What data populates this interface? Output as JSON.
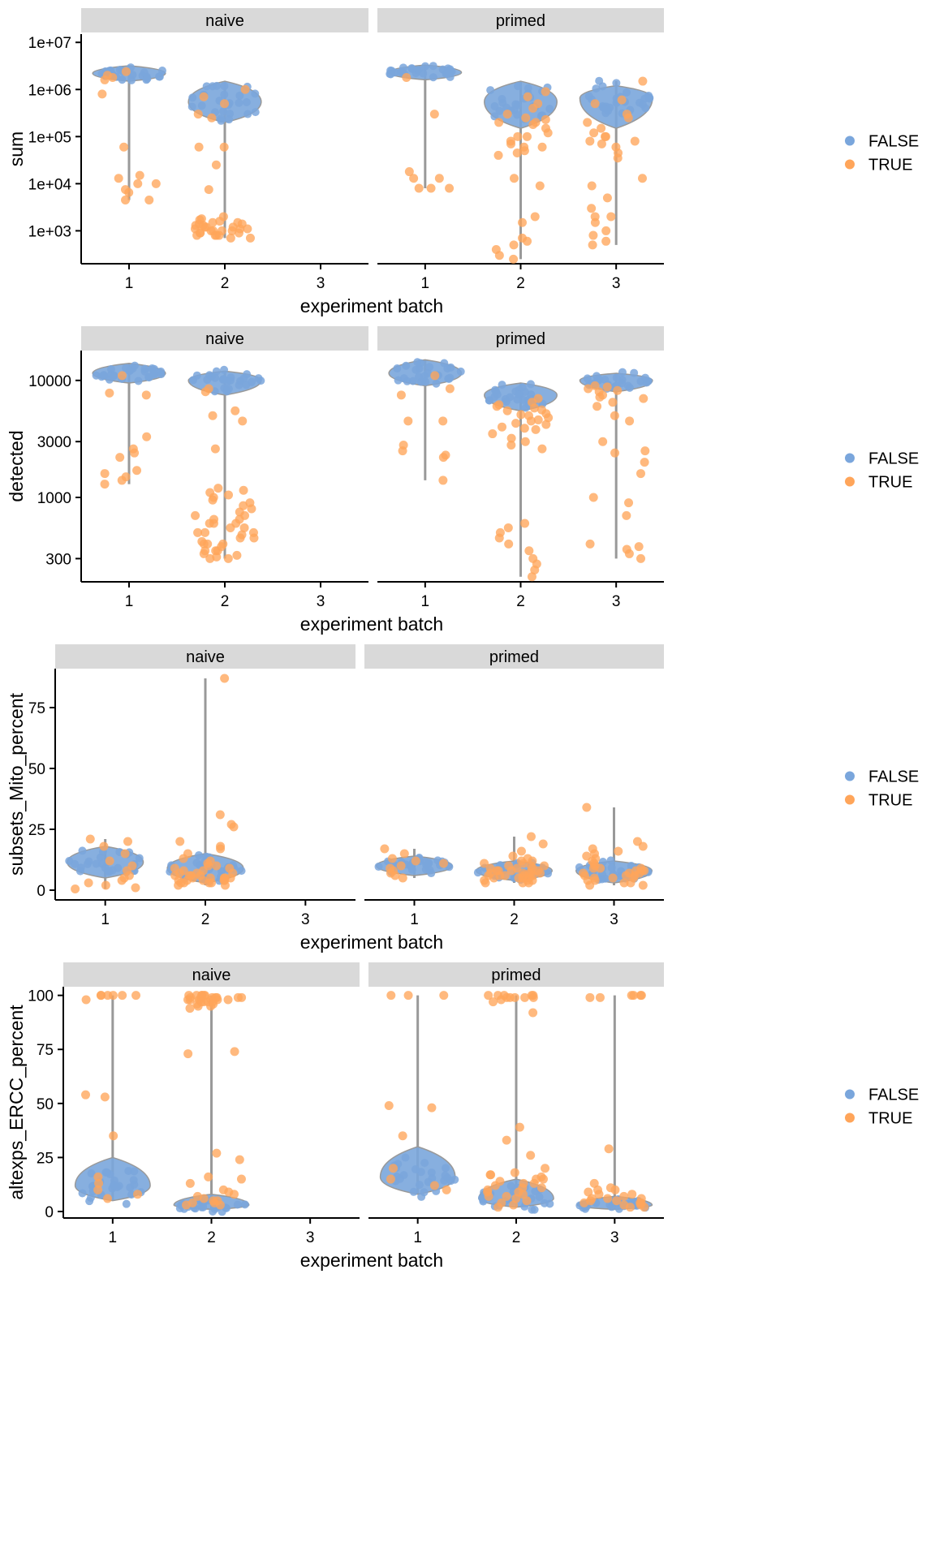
{
  "colors": {
    "false_pt": "#7aa6dc",
    "true_pt": "#ffa55a",
    "strip": "#d9d9d9",
    "violin": "#999999"
  },
  "chart_data": [
    {
      "type": "scatter",
      "title": "",
      "ylabel": "sum",
      "xlabel": "experiment batch",
      "y_scale": "log10",
      "ylim": [
        200,
        15000000
      ],
      "y_ticks": [
        1000,
        10000,
        100000,
        1000000,
        10000000
      ],
      "y_tick_labels": [
        "1e+03",
        "1e+04",
        "1e+05",
        "1e+06",
        "1e+07"
      ],
      "x_ticks": [
        "1",
        "2",
        "3"
      ],
      "facets": [
        "naive",
        "primed"
      ],
      "legend": {
        "position": "right",
        "entries": [
          "FALSE",
          "TRUE"
        ]
      },
      "groups": [
        {
          "facet": "naive",
          "batch": "1",
          "false_center": 2200000,
          "false_low": 1500000,
          "false_high": 3200000,
          "true_values": [
            2000000,
            1800000,
            2400000,
            1600000,
            800000,
            60000,
            15000,
            10000,
            10000,
            13000,
            7500,
            6500,
            4500,
            4500
          ]
        },
        {
          "facet": "naive",
          "batch": "2",
          "false_center": 550000,
          "false_low": 200000,
          "false_high": 1500000,
          "true_values": [
            1000000,
            700000,
            500000,
            300000,
            250000,
            60000,
            60000,
            25000,
            7500,
            1500,
            1400,
            1300,
            1200,
            1100,
            1000,
            900,
            800,
            1800,
            2000,
            1600,
            1300,
            1100,
            1000,
            900,
            800,
            700,
            1500,
            1200,
            1000,
            800,
            1700,
            1100,
            900,
            1400,
            1200,
            1000,
            800,
            700
          ]
        },
        {
          "facet": "primed",
          "batch": "1",
          "false_center": 2300000,
          "false_low": 1600000,
          "false_high": 3300000,
          "true_values": [
            1800000,
            300000,
            18000,
            13000,
            13000,
            8000,
            8000,
            8000
          ]
        },
        {
          "facet": "primed",
          "batch": "2",
          "false_center": 550000,
          "false_low": 150000,
          "false_high": 1500000,
          "true_values": [
            900000,
            700000,
            500000,
            400000,
            300000,
            250000,
            200000,
            180000,
            120000,
            100000,
            80000,
            70000,
            60000,
            50000,
            40000,
            13000,
            9000,
            2000,
            1500,
            700,
            600,
            500,
            400,
            300,
            250,
            230000,
            200000,
            150000,
            100000,
            60000,
            45000
          ]
        },
        {
          "facet": "primed",
          "batch": "3",
          "false_center": 650000,
          "false_low": 150000,
          "false_high": 1200000,
          "true_values": [
            1500000,
            600000,
            500000,
            300000,
            250000,
            200000,
            150000,
            120000,
            100000,
            80000,
            70000,
            60000,
            45000,
            35000,
            13000,
            9000,
            5000,
            3000,
            2000,
            1500,
            1000,
            800,
            600,
            500,
            2000,
            100000,
            80000
          ]
        }
      ]
    },
    {
      "type": "scatter",
      "title": "",
      "ylabel": "detected",
      "xlabel": "experiment batch",
      "y_scale": "log10",
      "ylim": [
        190,
        18000
      ],
      "y_ticks": [
        300,
        1000,
        3000,
        10000
      ],
      "y_tick_labels": [
        "300",
        "1000",
        "3000",
        "10000"
      ],
      "x_ticks": [
        "1",
        "2",
        "3"
      ],
      "facets": [
        "naive",
        "primed"
      ],
      "legend": {
        "position": "right",
        "entries": [
          "FALSE",
          "TRUE"
        ]
      },
      "groups": [
        {
          "facet": "naive",
          "batch": "1",
          "false_center": 11500,
          "false_low": 9500,
          "false_high": 14000,
          "true_values": [
            11000,
            7500,
            7800,
            3300,
            2600,
            2400,
            2200,
            1700,
            1600,
            1500,
            1400,
            1300
          ]
        },
        {
          "facet": "naive",
          "batch": "2",
          "false_center": 10000,
          "false_low": 7500,
          "false_high": 12000,
          "true_values": [
            8500,
            8000,
            5500,
            5000,
            4500,
            2600,
            1200,
            1100,
            1000,
            900,
            800,
            700,
            650,
            600,
            550,
            500,
            450,
            400,
            350,
            320,
            300,
            1150,
            1050,
            950,
            850,
            750,
            700,
            650,
            600,
            550,
            500,
            480,
            450,
            420,
            400,
            380,
            350,
            330,
            310,
            300,
            600,
            500,
            400,
            350
          ]
        },
        {
          "facet": "primed",
          "batch": "1",
          "false_center": 11500,
          "false_low": 9000,
          "false_high": 15000,
          "true_values": [
            11000,
            8500,
            7500,
            4500,
            4500,
            2800,
            2500,
            2300,
            2200,
            1400
          ]
        },
        {
          "facet": "primed",
          "batch": "2",
          "false_center": 7500,
          "false_low": 5500,
          "false_high": 9500,
          "true_values": [
            7000,
            6500,
            6000,
            5800,
            5500,
            5200,
            5000,
            4800,
            4500,
            4200,
            4000,
            3800,
            3500,
            3200,
            3000,
            2800,
            2600,
            600,
            550,
            500,
            450,
            400,
            350,
            300,
            270,
            240,
            210,
            6200,
            5600,
            5100,
            4600,
            4300,
            3900
          ]
        },
        {
          "facet": "primed",
          "batch": "3",
          "false_center": 10000,
          "false_low": 8000,
          "false_high": 11500,
          "true_values": [
            9000,
            8500,
            8000,
            7500,
            7000,
            6500,
            6000,
            5000,
            4500,
            3000,
            2500,
            2400,
            2000,
            1600,
            1000,
            900,
            700,
            400,
            380,
            360,
            330,
            300,
            8800,
            8200,
            7200
          ]
        }
      ]
    },
    {
      "type": "scatter",
      "title": "",
      "ylabel": "subsets_Mito_percent",
      "xlabel": "experiment batch",
      "y_scale": "linear",
      "ylim": [
        -4,
        91
      ],
      "y_ticks": [
        0,
        25,
        50,
        75
      ],
      "y_tick_labels": [
        "0",
        "25",
        "50",
        "75"
      ],
      "x_ticks": [
        "1",
        "2",
        "3"
      ],
      "facets": [
        "naive",
        "primed"
      ],
      "legend": {
        "position": "right",
        "entries": [
          "FALSE",
          "TRUE"
        ]
      },
      "groups": [
        {
          "facet": "naive",
          "batch": "1",
          "false_center": 11.5,
          "false_low": 5,
          "false_high": 18,
          "true_values": [
            21,
            20,
            18,
            15,
            12,
            10,
            8,
            6,
            5,
            4,
            3,
            2,
            1,
            0.5
          ]
        },
        {
          "facet": "naive",
          "batch": "2",
          "false_center": 9,
          "false_low": 3,
          "false_high": 15,
          "true_values": [
            87,
            31,
            27,
            26,
            20,
            18,
            17,
            15,
            13,
            12,
            11,
            10,
            9,
            8,
            7,
            7,
            6,
            6,
            5,
            5,
            5,
            4,
            4,
            4,
            3,
            3,
            3,
            2,
            2,
            6,
            7,
            8,
            5,
            4,
            9,
            10,
            6,
            5,
            4,
            3
          ]
        },
        {
          "facet": "primed",
          "batch": "1",
          "false_center": 10,
          "false_low": 6,
          "false_high": 14,
          "true_values": [
            17,
            15,
            13,
            12,
            11,
            10,
            9,
            8,
            7,
            6,
            5
          ]
        },
        {
          "facet": "primed",
          "batch": "2",
          "false_center": 8,
          "false_low": 4,
          "false_high": 12,
          "true_values": [
            22,
            19,
            16,
            14,
            13,
            12,
            11,
            10,
            10,
            9,
            9,
            8,
            8,
            8,
            7,
            7,
            7,
            6,
            6,
            6,
            5,
            5,
            5,
            4,
            4,
            4,
            3,
            3,
            3,
            9,
            8,
            7,
            6,
            10,
            11,
            12,
            7,
            6,
            5
          ]
        },
        {
          "facet": "primed",
          "batch": "3",
          "false_center": 8,
          "false_low": 3,
          "false_high": 12,
          "true_values": [
            34,
            20,
            18,
            17,
            16,
            15,
            14,
            13,
            12,
            11,
            10,
            9,
            9,
            8,
            8,
            7,
            7,
            6,
            6,
            5,
            5,
            4,
            4,
            3,
            3,
            2,
            2,
            8,
            7,
            6,
            5,
            9
          ]
        }
      ]
    },
    {
      "type": "scatter",
      "title": "",
      "ylabel": "altexps_ERCC_percent",
      "xlabel": "experiment batch",
      "y_scale": "linear",
      "ylim": [
        -3,
        104
      ],
      "y_ticks": [
        0,
        25,
        50,
        75,
        100
      ],
      "y_tick_labels": [
        "0",
        "25",
        "50",
        "75",
        "100"
      ],
      "x_ticks": [
        "1",
        "2",
        "3"
      ],
      "facets": [
        "naive",
        "primed"
      ],
      "legend": {
        "position": "right",
        "entries": [
          "FALSE",
          "TRUE"
        ]
      },
      "groups": [
        {
          "facet": "naive",
          "batch": "1",
          "false_center": 12,
          "false_low": 5,
          "false_high": 25,
          "true_values": [
            100,
            100,
            100,
            100,
            100,
            100,
            98,
            54,
            53,
            35,
            16,
            13,
            10,
            8,
            6
          ]
        },
        {
          "facet": "naive",
          "batch": "2",
          "false_center": 3,
          "false_low": 1,
          "false_high": 8,
          "true_values": [
            100,
            100,
            100,
            100,
            100,
            99,
            99,
            99,
            99,
            99,
            99,
            98,
            98,
            98,
            98,
            98,
            97,
            97,
            97,
            96,
            96,
            95,
            95,
            94,
            74,
            73,
            27,
            24,
            16,
            15,
            13,
            10,
            9,
            8,
            7,
            6,
            5,
            5,
            4,
            4,
            3,
            3,
            100,
            99,
            98,
            97
          ]
        },
        {
          "facet": "primed",
          "batch": "1",
          "false_center": 16,
          "false_low": 8,
          "false_high": 30,
          "true_values": [
            100,
            100,
            100,
            49,
            48,
            35,
            20,
            15,
            12,
            10
          ]
        },
        {
          "facet": "primed",
          "batch": "2",
          "false_center": 6,
          "false_low": 2,
          "false_high": 15,
          "true_values": [
            100,
            100,
            100,
            100,
            99,
            99,
            99,
            99,
            98,
            97,
            92,
            39,
            33,
            26,
            20,
            18,
            17,
            16,
            15,
            14,
            13,
            12,
            11,
            10,
            9,
            8,
            7,
            6,
            5,
            4,
            3,
            2,
            17,
            15,
            13,
            11,
            9,
            7,
            100,
            99
          ]
        },
        {
          "facet": "primed",
          "batch": "3",
          "false_center": 3,
          "false_low": 1,
          "false_high": 7,
          "true_values": [
            100,
            100,
            100,
            100,
            99,
            99,
            29,
            13,
            11,
            10,
            9,
            8,
            7,
            6,
            6,
            5,
            5,
            4,
            4,
            3,
            3,
            2,
            2,
            10,
            8,
            6,
            4
          ]
        }
      ]
    }
  ]
}
